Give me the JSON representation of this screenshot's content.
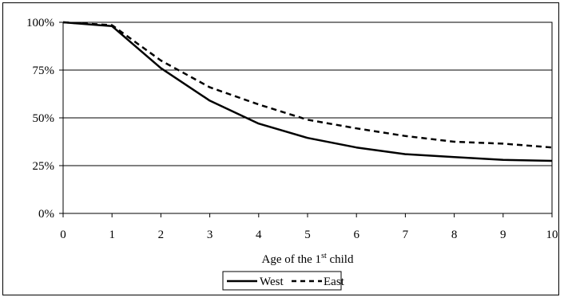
{
  "chart_data": {
    "type": "line",
    "title": "",
    "xlabel_main": "Age of the 1",
    "xlabel_sup": "st",
    "xlabel_end": " child",
    "ylabel": "",
    "x": [
      0,
      1,
      2,
      3,
      4,
      5,
      6,
      7,
      8,
      9,
      10
    ],
    "xlim": [
      0,
      10
    ],
    "ylim": [
      0,
      100
    ],
    "y_ticks": [
      "0%",
      "25%",
      "50%",
      "75%",
      "100%"
    ],
    "x_ticks": [
      "0",
      "1",
      "2",
      "3",
      "4",
      "5",
      "6",
      "7",
      "8",
      "9",
      "10"
    ],
    "grid": "horizontal",
    "legend_position": "bottom",
    "series": [
      {
        "name": "West",
        "style": "solid",
        "color": "#000000",
        "values": [
          100,
          98,
          76,
          59,
          47,
          39.5,
          34.5,
          31,
          29.5,
          28,
          27.5
        ]
      },
      {
        "name": "East",
        "style": "dashed",
        "color": "#000000",
        "values": [
          100,
          98.5,
          80,
          66,
          57,
          49,
          44.5,
          40.5,
          37.5,
          36.5,
          34.5
        ]
      }
    ]
  }
}
